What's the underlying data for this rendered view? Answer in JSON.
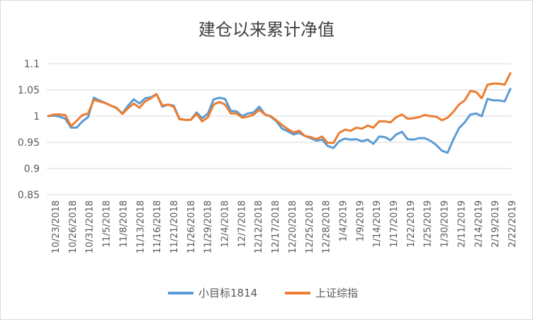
{
  "chart_data": {
    "type": "line",
    "title": "建仓以来累计净值",
    "xlabel": "",
    "ylabel": "",
    "ylim": [
      0.85,
      1.1
    ],
    "yticks": [
      "1.1",
      "1.05",
      "1",
      "0.95",
      "0.9",
      "0.85"
    ],
    "grid": true,
    "legend_position": "bottom",
    "tick_labels": [
      "10/23/2018",
      "10/26/2018",
      "10/31/2018",
      "11/5/2018",
      "11/8/2018",
      "11/13/2018",
      "11/16/2018",
      "11/21/2018",
      "11/26/2018",
      "11/29/2018",
      "12/4/2018",
      "12/7/2018",
      "12/12/2018",
      "12/17/2018",
      "12/20/2018",
      "12/25/2018",
      "12/28/2018",
      "1/4/2019",
      "1/9/2019",
      "1/14/2019",
      "1/17/2019",
      "1/22/2019",
      "1/25/2019",
      "1/30/2019",
      "2/11/2019",
      "2/14/2019",
      "2/19/2019",
      "2/22/2019"
    ],
    "series": [
      {
        "name": "小目标1814",
        "color": "#5b9bd5",
        "values": [
          1.0,
          1.001,
          0.999,
          0.995,
          0.978,
          0.978,
          0.99,
          0.998,
          1.035,
          1.03,
          1.025,
          1.02,
          1.015,
          1.005,
          1.02,
          1.032,
          1.024,
          1.034,
          1.036,
          1.042,
          1.018,
          1.022,
          1.02,
          0.995,
          0.993,
          0.993,
          1.007,
          0.996,
          1.005,
          1.032,
          1.035,
          1.033,
          1.01,
          1.009,
          1.0,
          1.005,
          1.007,
          1.018,
          1.003,
          0.999,
          0.99,
          0.976,
          0.971,
          0.965,
          0.968,
          0.962,
          0.958,
          0.953,
          0.955,
          0.943,
          0.939,
          0.952,
          0.957,
          0.955,
          0.956,
          0.952,
          0.955,
          0.947,
          0.961,
          0.96,
          0.954,
          0.965,
          0.97,
          0.956,
          0.955,
          0.958,
          0.958,
          0.953,
          0.945,
          0.934,
          0.93,
          0.955,
          0.977,
          0.988,
          1.003,
          1.005,
          1.0,
          1.033,
          1.03,
          1.03,
          1.028,
          1.052
        ]
      },
      {
        "name": "上证综指",
        "color": "#ed7d31",
        "values": [
          1.0,
          1.003,
          1.003,
          1.002,
          0.981,
          0.991,
          1.002,
          1.005,
          1.031,
          1.028,
          1.025,
          1.02,
          1.016,
          1.004,
          1.015,
          1.024,
          1.016,
          1.028,
          1.034,
          1.042,
          1.02,
          1.022,
          1.018,
          0.994,
          0.993,
          0.993,
          1.004,
          0.99,
          0.998,
          1.022,
          1.027,
          1.022,
          1.005,
          1.005,
          0.997,
          0.999,
          1.003,
          1.012,
          1.003,
          1.0,
          0.992,
          0.983,
          0.975,
          0.969,
          0.972,
          0.962,
          0.96,
          0.956,
          0.961,
          0.949,
          0.949,
          0.968,
          0.974,
          0.972,
          0.978,
          0.976,
          0.982,
          0.978,
          0.99,
          0.99,
          0.988,
          0.998,
          1.003,
          0.995,
          0.996,
          0.998,
          1.002,
          1.0,
          0.999,
          0.992,
          0.997,
          1.008,
          1.022,
          1.03,
          1.048,
          1.046,
          1.034,
          1.06,
          1.062,
          1.062,
          1.06,
          1.082
        ]
      }
    ]
  }
}
